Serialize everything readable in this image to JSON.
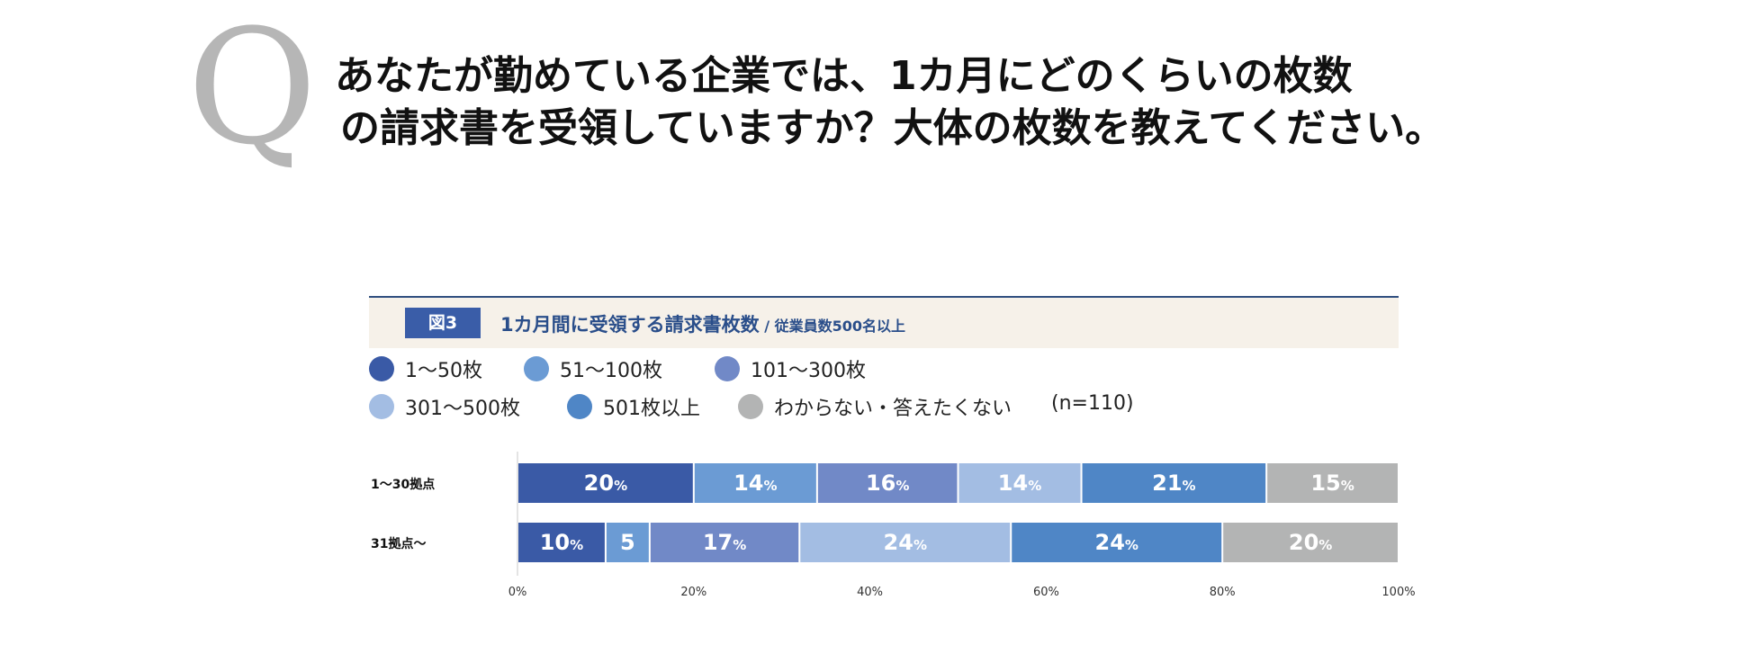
{
  "header": {
    "q_mark": "Q",
    "question_line1": "あなたが勤めている企業では、1カ月にどのくらいの枚数",
    "question_line2": "の請求書を受領していますか？大体の枚数を教えてください。"
  },
  "figure": {
    "badge": "図3",
    "title": "1カ月間に受領する請求書枚数",
    "subtitle": " / 従業員数500名以上",
    "sample_size": "(n=110)"
  },
  "colors": {
    "s1": "#3a5aa6",
    "s2": "#6b9bd4",
    "s3": "#7189c7",
    "s4": "#a3bde3",
    "s5": "#4f86c6",
    "s6": "#b3b4b4",
    "label_text": "#ffffff",
    "axis_text": "#333333"
  },
  "chart_data": {
    "type": "bar",
    "orientation": "horizontal-stacked-100",
    "categories": [
      "1〜30拠点",
      "31拠点〜"
    ],
    "series": [
      {
        "name": "1〜50枚",
        "values": [
          20,
          10
        ],
        "labels": [
          "20%",
          "10%"
        ]
      },
      {
        "name": "51〜100枚",
        "values": [
          14,
          5
        ],
        "labels": [
          "14%",
          "5"
        ]
      },
      {
        "name": "101〜300枚",
        "values": [
          16,
          17
        ],
        "labels": [
          "16%",
          "17%"
        ]
      },
      {
        "name": "301〜500枚",
        "values": [
          14,
          24
        ],
        "labels": [
          "14%",
          "24%"
        ]
      },
      {
        "name": "501枚以上",
        "values": [
          21,
          24
        ],
        "labels": [
          "21%",
          "24%"
        ]
      },
      {
        "name": "わからない・答えたくない",
        "values": [
          15,
          20
        ],
        "labels": [
          "15%",
          "20%"
        ]
      }
    ],
    "xlim": [
      0,
      100
    ],
    "x_ticks": [
      "0%",
      "20%",
      "40%",
      "60%",
      "80%",
      "100%"
    ],
    "legend_position": "top"
  }
}
